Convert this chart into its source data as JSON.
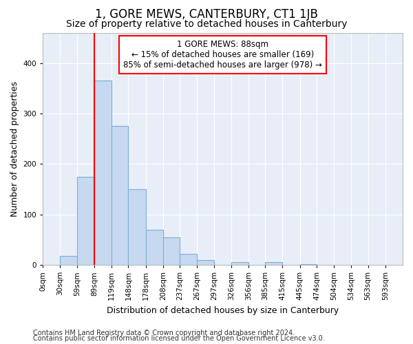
{
  "title": "1, GORE MEWS, CANTERBURY, CT1 1JB",
  "subtitle": "Size of property relative to detached houses in Canterbury",
  "xlabel": "Distribution of detached houses by size in Canterbury",
  "ylabel": "Number of detached properties",
  "footnote1": "Contains HM Land Registry data © Crown copyright and database right 2024.",
  "footnote2": "Contains public sector information licensed under the Open Government Licence v3.0.",
  "bar_labels": [
    "0sqm",
    "30sqm",
    "59sqm",
    "89sqm",
    "119sqm",
    "148sqm",
    "178sqm",
    "208sqm",
    "237sqm",
    "267sqm",
    "297sqm",
    "326sqm",
    "356sqm",
    "385sqm",
    "415sqm",
    "445sqm",
    "474sqm",
    "504sqm",
    "534sqm",
    "563sqm",
    "593sqm"
  ],
  "bar_values": [
    0,
    18,
    175,
    365,
    275,
    150,
    70,
    55,
    22,
    10,
    0,
    5,
    0,
    6,
    0,
    2,
    0,
    0,
    0,
    0,
    0
  ],
  "bar_color": "#c6d9f0",
  "bar_edge_color": "#7bafd4",
  "annotation_text": "1 GORE MEWS: 88sqm\n← 15% of detached houses are smaller (169)\n85% of semi-detached houses are larger (978) →",
  "annotation_box_color": "white",
  "annotation_box_edge_color": "red",
  "vline_x": 89,
  "vline_color": "red",
  "ylim": [
    0,
    460
  ],
  "bin_edges": [
    0,
    30,
    59,
    89,
    119,
    148,
    178,
    208,
    237,
    267,
    297,
    326,
    356,
    385,
    415,
    445,
    474,
    504,
    534,
    563,
    593,
    623
  ],
  "background_color": "#ffffff",
  "plot_bg_color": "#e8eef8",
  "grid_color": "#ffffff",
  "title_fontsize": 12,
  "subtitle_fontsize": 10,
  "axis_label_fontsize": 9,
  "tick_fontsize": 7.5,
  "annotation_fontsize": 8.5,
  "footnote_fontsize": 7
}
